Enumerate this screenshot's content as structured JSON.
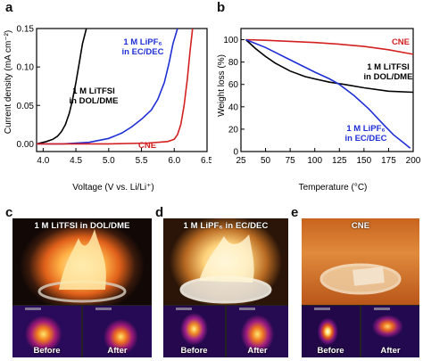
{
  "panels": {
    "a": "a",
    "b": "b",
    "c": "c",
    "d": "d",
    "e": "e"
  },
  "chart_data": [
    {
      "type": "line",
      "panel": "a",
      "xlabel": "Voltage (V vs. Li/Li⁺)",
      "ylabel": "Current density (mA cm⁻²)",
      "xlim": [
        3.9,
        6.5
      ],
      "ylim": [
        -0.01,
        0.15
      ],
      "xticks": [
        "4.0",
        "4.5",
        "5.0",
        "5.5",
        "6.0",
        "6.5"
      ],
      "yticks": [
        "0.00",
        "0.05",
        "0.10",
        "0.15"
      ],
      "grid": false,
      "series": [
        {
          "name": "1 M LiTFSI in DOL/DME",
          "label_lines": [
            "1 M LiTFSI",
            "in DOL/DME"
          ],
          "color": "#000000",
          "x": [
            3.9,
            4.05,
            4.15,
            4.22,
            4.28,
            4.34,
            4.4,
            4.45,
            4.5,
            4.55,
            4.6,
            4.66
          ],
          "y": [
            0.0,
            0.003,
            0.006,
            0.01,
            0.016,
            0.025,
            0.04,
            0.058,
            0.08,
            0.105,
            0.13,
            0.15
          ]
        },
        {
          "name": "1 M LiPF₆ in EC/DEC",
          "label_lines": [
            "1 M LiPF₆",
            "in EC/DEC"
          ],
          "color": "#1f2fd6",
          "x": [
            3.9,
            4.3,
            4.7,
            5.0,
            5.2,
            5.35,
            5.5,
            5.65,
            5.75,
            5.85,
            5.92,
            5.98,
            6.05
          ],
          "y": [
            0.0,
            0.0,
            0.002,
            0.007,
            0.014,
            0.022,
            0.032,
            0.044,
            0.058,
            0.08,
            0.105,
            0.13,
            0.15
          ]
        },
        {
          "name": "CNE",
          "label_lines": [
            "CNE"
          ],
          "color": "#d42020",
          "x": [
            3.9,
            5.0,
            5.6,
            5.9,
            6.0,
            6.05,
            6.1,
            6.15,
            6.2,
            6.24,
            6.28
          ],
          "y": [
            0.0,
            0.0,
            0.001,
            0.003,
            0.006,
            0.012,
            0.025,
            0.05,
            0.085,
            0.12,
            0.15
          ]
        }
      ]
    },
    {
      "type": "line",
      "panel": "b",
      "xlabel": "Temperature (°C)",
      "ylabel": "Weight loss (%)",
      "xlim": [
        25,
        200
      ],
      "ylim": [
        0,
        110
      ],
      "xticks": [
        "25",
        "50",
        "75",
        "100",
        "125",
        "150",
        "175",
        "200"
      ],
      "yticks": [
        "0",
        "20",
        "40",
        "60",
        "80",
        "100"
      ],
      "grid": false,
      "series": [
        {
          "name": "CNE",
          "label_lines": [
            "CNE"
          ],
          "color": "#d42020",
          "x": [
            30,
            50,
            75,
            100,
            125,
            150,
            175,
            200
          ],
          "y": [
            100,
            99.5,
            98.5,
            97.5,
            96,
            94,
            91,
            87
          ]
        },
        {
          "name": "1 M LiTFSI in DOL/DME",
          "label_lines": [
            "1 M LiTFSI",
            "in DOL/DME"
          ],
          "color": "#000000",
          "x": [
            30,
            40,
            50,
            60,
            75,
            90,
            100,
            115,
            130,
            150,
            175,
            200
          ],
          "y": [
            100,
            92,
            85,
            79,
            72,
            67,
            65,
            62,
            60,
            57,
            54,
            53
          ]
        },
        {
          "name": "1 M LiPF₆ in EC/DEC",
          "label_lines": [
            "1 M LiPF₆",
            "in EC/DEC"
          ],
          "color": "#1f2fd6",
          "x": [
            30,
            50,
            75,
            100,
            115,
            125,
            140,
            155,
            170,
            180,
            190,
            197
          ],
          "y": [
            100,
            93,
            82,
            71,
            65,
            60,
            50,
            38,
            24,
            15,
            8,
            3
          ]
        }
      ]
    }
  ],
  "photos": {
    "c": {
      "caption": "1 M LiTFSI in DOL/DME",
      "before": "Before",
      "after": "After"
    },
    "d": {
      "caption": "1 M LiPF₆ in EC/DEC",
      "before": "Before",
      "after": "After"
    },
    "e": {
      "caption": "CNE",
      "before": "Before",
      "after": "After"
    }
  }
}
